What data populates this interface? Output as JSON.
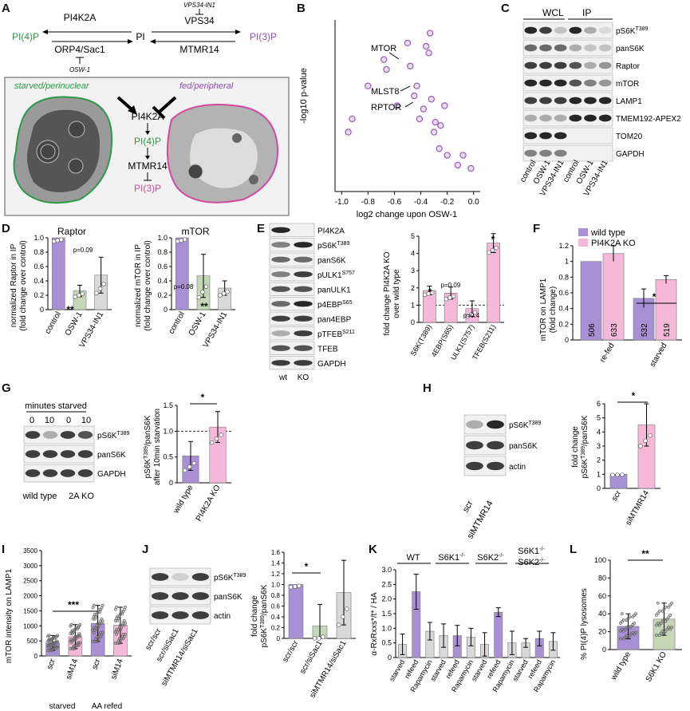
{
  "colors": {
    "purple": "#a98fd4",
    "pink": "#f6b8d8",
    "green_fill": "#c5d7b7",
    "grey_fill": "#d9d9d9",
    "green_text": "#2e9a47",
    "purple_text": "#8e4fb0",
    "magenta_text": "#d24aa0",
    "point": "#9b59b6"
  },
  "panels": {
    "A": {
      "letter": "A",
      "pi4k2a": "PI4K2A",
      "pi4p": "PI(4)P",
      "pi": "PI",
      "vps34": "VPS34",
      "vps34in1": "VPS34-IN1",
      "pi3p": "PI(3)P",
      "orp4": "ORP4/Sac1",
      "mtmr14": "MTMR14",
      "osw1": "OSW-1",
      "starved": "starved/perinuclear",
      "fed": "fed/peripheral",
      "c_pi4k2a": "PI4K2A",
      "c_pi4p": "PI(4)P",
      "c_mtmr14": "MTMR14",
      "c_pi3p": "PI(3)P"
    },
    "B": {
      "letter": "B",
      "ylabel": "-log10 p-value",
      "xlabel": "log2 change upon OSW-1",
      "labels": [
        "MTOR",
        "MLST8",
        "RPTOR"
      ],
      "xticks": [
        "-1.0",
        "-0.8",
        "-0.6",
        "-0.4",
        "-0.2",
        "0.0"
      ]
    },
    "C": {
      "letter": "C",
      "wcl": "WCL",
      "ip": "IP",
      "rows": [
        "pS6K",
        "panS6K",
        "Raptor",
        "mTOR",
        "LAMP1",
        "TMEM192-APEX2",
        "TOM20",
        "GAPDH"
      ],
      "sup": "T389",
      "lanes": [
        "control",
        "OSW-1",
        "VPS34-IN1",
        "control",
        "OSW-1",
        "VPS34-IN1"
      ]
    },
    "D": {
      "letter": "D",
      "title1": "Raptor",
      "title2": "mTOR",
      "ylabel1": "normalized Raptor in IP",
      "ylabel2": "normalized mTOR in IP",
      "ylabel_sub": "(fold change over control)",
      "cats": [
        "control",
        "OSW-1",
        "VPS34-IN1"
      ],
      "p1": "p=0.09",
      "p2": "p=0.08",
      "star": "**"
    },
    "E": {
      "letter": "E",
      "rows": [
        "PI4K2A",
        "pS6K",
        "panS6K",
        "pULK1",
        "panULK1",
        "p4EBP",
        "pan4EBP",
        "pTFEB",
        "TFEB",
        "GAPDH"
      ],
      "sups": [
        "",
        "T389",
        "",
        "S757",
        "",
        "S65",
        "",
        "S211",
        "",
        ""
      ],
      "lanes": [
        "wt",
        "KO"
      ],
      "ylabel1": "fold change PI4K2A KO",
      "ylabel2": "over wild type",
      "cats": [
        "S6K(T389)",
        "4EBP(S65)",
        "ULK1(S757)",
        "TFEB(S211)"
      ],
      "p1": "p=0.09",
      "p2": "p=0.4",
      "star": "*"
    },
    "F": {
      "letter": "F",
      "legend": [
        "wild type",
        "PI4K2A KO"
      ],
      "ylabel1": "mTOR on LAMP1",
      "ylabel2": "(fold change)",
      "cats": [
        "re-fed",
        "starved"
      ],
      "ns": [
        "506",
        "633",
        "532",
        "519"
      ],
      "star": "*"
    },
    "G": {
      "letter": "G",
      "minutes": "minutes starved",
      "lanes": [
        "0",
        "10",
        "0",
        "10"
      ],
      "rows": [
        "pS6K",
        "panS6K",
        "GAPDH"
      ],
      "sup": "T389",
      "groups": [
        "wild type",
        "2A KO"
      ],
      "ylabel1": "pS6K",
      "ylabel_sup": "T389",
      "ylabel1b": "/panS6K",
      "ylabel2": "after 10min starvation",
      "cats": [
        "wild type",
        "PI4K2A KO"
      ],
      "star": "*"
    },
    "H": {
      "letter": "H",
      "rows": [
        "pS6K",
        "panS6K",
        "actin"
      ],
      "sup": "T389",
      "lanes": [
        "scr",
        "siMTMR14"
      ],
      "ylabel1": "fold change",
      "ylabel2": "pS6K",
      "ylabel2_sup": "T389",
      "ylabel2b": "/panS6K",
      "cats": [
        "scr",
        "siMTMR14"
      ],
      "star": "*"
    },
    "I": {
      "letter": "I",
      "ylabel": "mTOR intensity on LAMP1",
      "cats": [
        "scr",
        "siM14",
        "scr",
        "siM14"
      ],
      "groups": [
        "starved",
        "AA refed"
      ],
      "star": "***"
    },
    "J": {
      "letter": "J",
      "rows": [
        "pS6K",
        "panS6K",
        "actin"
      ],
      "sup": "T389",
      "lanes": [
        "scr/scr",
        "scr/siSac1",
        "siMTMR14/siSac1"
      ],
      "ylabel1": "fold change",
      "ylabel2": "pS6K",
      "ylabel2_sup": "T389",
      "ylabel2b": "/panS6K",
      "cats": [
        "scr/scr",
        "scr/siSac1",
        "siMTMR14/siSac1"
      ],
      "star": "*"
    },
    "K": {
      "letter": "K",
      "groups": [
        "WT",
        "S6K1",
        "S6K2",
        "S6K1",
        "S6K2"
      ],
      "ko": "-/-",
      "ylabel": "α-RxRxxs*/t* / HA",
      "cats": [
        "starved",
        "refeed",
        "Rapamycin"
      ]
    },
    "L": {
      "letter": "L",
      "ylabel": "% PI(4)P lysosomes",
      "cats": [
        "wild type",
        "S6K1 KO"
      ],
      "star": "**"
    }
  },
  "chart_data": [
    {
      "panel": "B",
      "type": "scatter",
      "xlabel": "log2 change upon OSW-1",
      "ylabel": "-log10 p-value",
      "xlim": [
        -1.05,
        0.05
      ],
      "ylim": [
        0,
        2.6
      ],
      "points": [
        [
          -0.95,
          0.9
        ],
        [
          -0.92,
          1.1
        ],
        [
          -0.8,
          1.6
        ],
        [
          -0.68,
          2.0
        ],
        [
          -0.66,
          1.85
        ],
        [
          -0.58,
          1.3
        ],
        [
          -0.5,
          2.25
        ],
        [
          -0.48,
          1.9
        ],
        [
          -0.45,
          1.45
        ],
        [
          -0.43,
          1.6
        ],
        [
          -0.41,
          1.1
        ],
        [
          -0.38,
          1.25
        ],
        [
          -0.36,
          2.2
        ],
        [
          -0.34,
          2.1
        ],
        [
          -0.33,
          2.4
        ],
        [
          -0.32,
          1.4
        ],
        [
          -0.3,
          0.9
        ],
        [
          -0.29,
          1.05
        ],
        [
          -0.26,
          0.65
        ],
        [
          -0.25,
          1.0
        ],
        [
          -0.22,
          1.3
        ],
        [
          -0.2,
          0.55
        ],
        [
          -0.12,
          0.4
        ],
        [
          -0.08,
          0.55
        ],
        [
          -0.02,
          0.35
        ]
      ]
    },
    {
      "panel": "D-Raptor",
      "type": "bar",
      "categories": [
        "control",
        "OSW-1",
        "VPS34-IN1"
      ],
      "values": [
        1.0,
        0.26,
        0.48
      ],
      "errors": [
        0,
        0.08,
        0.25
      ],
      "ylim": [
        0,
        1.0
      ]
    },
    {
      "panel": "D-mTOR",
      "type": "bar",
      "categories": [
        "control",
        "OSW-1",
        "VPS34-IN1"
      ],
      "values": [
        1.0,
        0.47,
        0.3
      ],
      "errors": [
        0,
        0.3,
        0.1
      ],
      "ylim": [
        0,
        1.0
      ]
    },
    {
      "panel": "E",
      "type": "bar",
      "categories": [
        "S6K(T389)",
        "4EBP(S65)",
        "ULK1(S757)",
        "TFEB(S211)"
      ],
      "values": [
        1.85,
        1.7,
        0.8,
        4.6
      ],
      "errors": [
        0.25,
        0.35,
        0.45,
        0.55
      ],
      "ylim": [
        0,
        5
      ],
      "reference": 1
    },
    {
      "panel": "F",
      "type": "bar",
      "categories": [
        "re-fed",
        "starved"
      ],
      "series": [
        {
          "name": "wild type",
          "values": [
            1.0,
            0.53
          ],
          "errors": [
            0,
            0.12
          ]
        },
        {
          "name": "PI4K2A KO",
          "values": [
            1.1,
            0.77
          ],
          "errors": [
            0.1,
            0.05
          ]
        }
      ],
      "ylim": [
        0,
        1.2
      ]
    },
    {
      "panel": "G",
      "type": "bar",
      "categories": [
        "wild type",
        "PI4K2A KO"
      ],
      "values": [
        0.52,
        1.08
      ],
      "errors": [
        0.28,
        0.3
      ],
      "ylim": [
        0,
        1.5
      ],
      "reference": 1
    },
    {
      "panel": "H",
      "type": "bar",
      "categories": [
        "scr",
        "siMTMR14"
      ],
      "values": [
        1.0,
        4.5
      ],
      "errors": [
        0,
        1.5
      ],
      "ylim": [
        0,
        6
      ]
    },
    {
      "panel": "I",
      "type": "bar",
      "categories": [
        "scr",
        "siM14",
        "scr",
        "siM14"
      ],
      "values": [
        430,
        640,
        1080,
        1020
      ],
      "errors": [
        250,
        400,
        600,
        600
      ],
      "ylim": [
        0,
        3500
      ]
    },
    {
      "panel": "J",
      "type": "bar",
      "categories": [
        "scr/scr",
        "scr/siSac1",
        "siMTMR14/siSac1"
      ],
      "values": [
        1.0,
        0.23,
        0.85
      ],
      "errors": [
        0,
        0.4,
        0.6
      ],
      "ylim": [
        0,
        1.6
      ]
    },
    {
      "panel": "K",
      "type": "bar",
      "categories": [
        "starved",
        "refeed",
        "Rapamycin",
        "starved",
        "refeed",
        "Rapamycin",
        "starved",
        "refeed",
        "Rapamycin",
        "starved",
        "refeed",
        "Rapamycin"
      ],
      "values": [
        0.45,
        2.25,
        0.9,
        0.75,
        0.75,
        0.7,
        0.45,
        1.55,
        0.5,
        0.5,
        0.65,
        0.55
      ],
      "errors": [
        0.35,
        0.6,
        0.3,
        0.4,
        0.35,
        0.3,
        0.4,
        0.15,
        0.4,
        0.15,
        0.25,
        0.3
      ],
      "ylim": [
        0,
        3
      ]
    },
    {
      "panel": "L",
      "type": "bar",
      "categories": [
        "wild type",
        "S6K1 KO"
      ],
      "values": [
        26,
        34
      ],
      "errors": [
        14,
        18
      ],
      "ylim": [
        0,
        100
      ]
    }
  ]
}
